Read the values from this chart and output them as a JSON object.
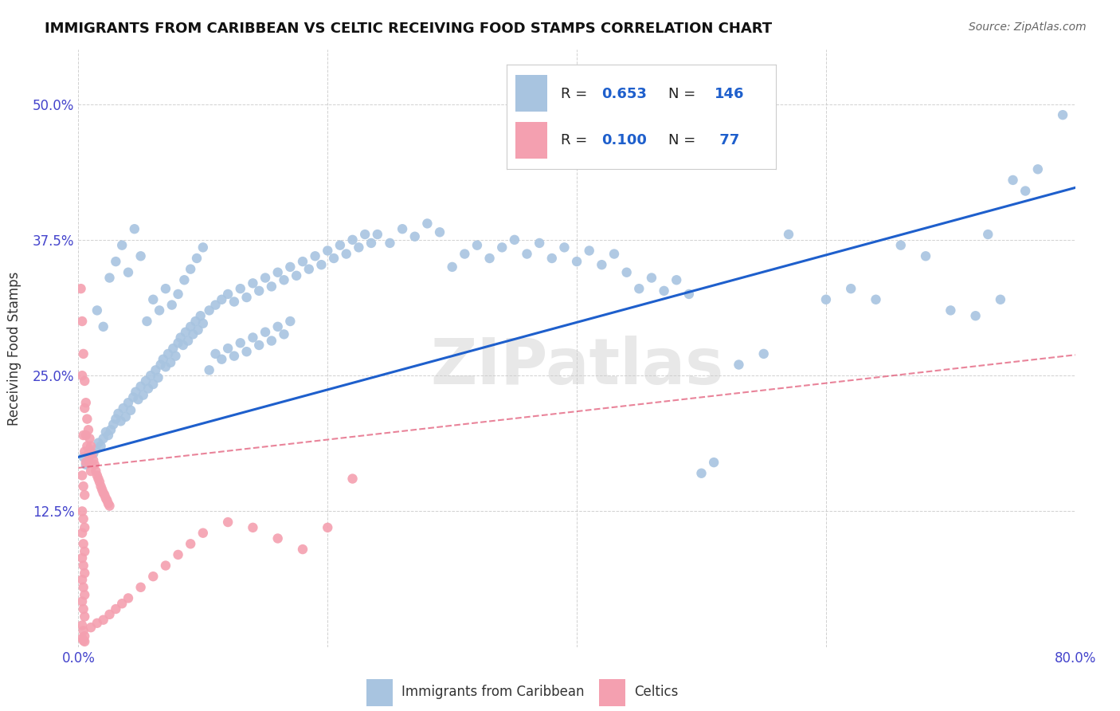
{
  "title": "IMMIGRANTS FROM CARIBBEAN VS CELTIC RECEIVING FOOD STAMPS CORRELATION CHART",
  "source": "Source: ZipAtlas.com",
  "ylabel": "Receiving Food Stamps",
  "xlim": [
    0.0,
    0.8
  ],
  "ylim": [
    0.0,
    0.55
  ],
  "xtick_vals": [
    0.0,
    0.2,
    0.4,
    0.6,
    0.8
  ],
  "xticklabels": [
    "0.0%",
    "",
    "",
    "",
    "80.0%"
  ],
  "ytick_vals": [
    0.0,
    0.125,
    0.25,
    0.375,
    0.5
  ],
  "yticklabels": [
    "",
    "12.5%",
    "25.0%",
    "37.5%",
    "50.0%"
  ],
  "caribbean_color": "#a8c4e0",
  "celtic_color": "#f4a0b0",
  "line1_color": "#1e5fcc",
  "line2_color": "#e05070",
  "watermark": "ZIPatlas",
  "title_fontsize": 13,
  "axis_tick_color": "#4444cc",
  "grid_color": "#cccccc",
  "background_color": "#ffffff",
  "caribbean_points": [
    [
      0.004,
      0.175
    ],
    [
      0.006,
      0.168
    ],
    [
      0.008,
      0.172
    ],
    [
      0.01,
      0.18
    ],
    [
      0.012,
      0.178
    ],
    [
      0.014,
      0.182
    ],
    [
      0.016,
      0.188
    ],
    [
      0.018,
      0.185
    ],
    [
      0.02,
      0.192
    ],
    [
      0.022,
      0.198
    ],
    [
      0.024,
      0.195
    ],
    [
      0.026,
      0.2
    ],
    [
      0.028,
      0.205
    ],
    [
      0.03,
      0.21
    ],
    [
      0.032,
      0.215
    ],
    [
      0.034,
      0.208
    ],
    [
      0.036,
      0.22
    ],
    [
      0.038,
      0.212
    ],
    [
      0.04,
      0.225
    ],
    [
      0.042,
      0.218
    ],
    [
      0.044,
      0.23
    ],
    [
      0.046,
      0.235
    ],
    [
      0.048,
      0.228
    ],
    [
      0.05,
      0.24
    ],
    [
      0.052,
      0.232
    ],
    [
      0.054,
      0.245
    ],
    [
      0.056,
      0.238
    ],
    [
      0.058,
      0.25
    ],
    [
      0.06,
      0.242
    ],
    [
      0.062,
      0.255
    ],
    [
      0.064,
      0.248
    ],
    [
      0.066,
      0.26
    ],
    [
      0.068,
      0.265
    ],
    [
      0.07,
      0.258
    ],
    [
      0.072,
      0.27
    ],
    [
      0.074,
      0.262
    ],
    [
      0.076,
      0.275
    ],
    [
      0.078,
      0.268
    ],
    [
      0.08,
      0.28
    ],
    [
      0.082,
      0.285
    ],
    [
      0.084,
      0.278
    ],
    [
      0.086,
      0.29
    ],
    [
      0.088,
      0.282
    ],
    [
      0.09,
      0.295
    ],
    [
      0.092,
      0.288
    ],
    [
      0.094,
      0.3
    ],
    [
      0.096,
      0.292
    ],
    [
      0.098,
      0.305
    ],
    [
      0.1,
      0.298
    ],
    [
      0.105,
      0.31
    ],
    [
      0.11,
      0.315
    ],
    [
      0.115,
      0.32
    ],
    [
      0.12,
      0.325
    ],
    [
      0.125,
      0.318
    ],
    [
      0.13,
      0.33
    ],
    [
      0.135,
      0.322
    ],
    [
      0.14,
      0.335
    ],
    [
      0.145,
      0.328
    ],
    [
      0.15,
      0.34
    ],
    [
      0.155,
      0.332
    ],
    [
      0.16,
      0.345
    ],
    [
      0.165,
      0.338
    ],
    [
      0.17,
      0.35
    ],
    [
      0.175,
      0.342
    ],
    [
      0.18,
      0.355
    ],
    [
      0.185,
      0.348
    ],
    [
      0.19,
      0.36
    ],
    [
      0.195,
      0.352
    ],
    [
      0.2,
      0.365
    ],
    [
      0.205,
      0.358
    ],
    [
      0.21,
      0.37
    ],
    [
      0.215,
      0.362
    ],
    [
      0.22,
      0.375
    ],
    [
      0.225,
      0.368
    ],
    [
      0.23,
      0.38
    ],
    [
      0.235,
      0.372
    ],
    [
      0.015,
      0.31
    ],
    [
      0.02,
      0.295
    ],
    [
      0.025,
      0.34
    ],
    [
      0.03,
      0.355
    ],
    [
      0.035,
      0.37
    ],
    [
      0.04,
      0.345
    ],
    [
      0.045,
      0.385
    ],
    [
      0.05,
      0.36
    ],
    [
      0.055,
      0.3
    ],
    [
      0.06,
      0.32
    ],
    [
      0.065,
      0.31
    ],
    [
      0.07,
      0.33
    ],
    [
      0.075,
      0.315
    ],
    [
      0.08,
      0.325
    ],
    [
      0.085,
      0.338
    ],
    [
      0.09,
      0.348
    ],
    [
      0.095,
      0.358
    ],
    [
      0.1,
      0.368
    ],
    [
      0.105,
      0.255
    ],
    [
      0.11,
      0.27
    ],
    [
      0.115,
      0.265
    ],
    [
      0.12,
      0.275
    ],
    [
      0.125,
      0.268
    ],
    [
      0.13,
      0.28
    ],
    [
      0.135,
      0.272
    ],
    [
      0.14,
      0.285
    ],
    [
      0.145,
      0.278
    ],
    [
      0.15,
      0.29
    ],
    [
      0.155,
      0.282
    ],
    [
      0.16,
      0.295
    ],
    [
      0.165,
      0.288
    ],
    [
      0.17,
      0.3
    ],
    [
      0.24,
      0.38
    ],
    [
      0.25,
      0.372
    ],
    [
      0.26,
      0.385
    ],
    [
      0.27,
      0.378
    ],
    [
      0.28,
      0.39
    ],
    [
      0.29,
      0.382
    ],
    [
      0.3,
      0.35
    ],
    [
      0.31,
      0.362
    ],
    [
      0.32,
      0.37
    ],
    [
      0.33,
      0.358
    ],
    [
      0.34,
      0.368
    ],
    [
      0.35,
      0.375
    ],
    [
      0.36,
      0.362
    ],
    [
      0.37,
      0.372
    ],
    [
      0.38,
      0.358
    ],
    [
      0.39,
      0.368
    ],
    [
      0.4,
      0.355
    ],
    [
      0.41,
      0.365
    ],
    [
      0.42,
      0.352
    ],
    [
      0.43,
      0.362
    ],
    [
      0.44,
      0.345
    ],
    [
      0.45,
      0.33
    ],
    [
      0.46,
      0.34
    ],
    [
      0.47,
      0.328
    ],
    [
      0.48,
      0.338
    ],
    [
      0.49,
      0.325
    ],
    [
      0.5,
      0.16
    ],
    [
      0.51,
      0.17
    ],
    [
      0.53,
      0.26
    ],
    [
      0.55,
      0.27
    ],
    [
      0.57,
      0.38
    ],
    [
      0.6,
      0.32
    ],
    [
      0.62,
      0.33
    ],
    [
      0.64,
      0.32
    ],
    [
      0.66,
      0.37
    ],
    [
      0.68,
      0.36
    ],
    [
      0.7,
      0.31
    ],
    [
      0.72,
      0.305
    ],
    [
      0.73,
      0.38
    ],
    [
      0.74,
      0.32
    ],
    [
      0.75,
      0.43
    ],
    [
      0.76,
      0.42
    ],
    [
      0.77,
      0.44
    ],
    [
      0.79,
      0.49
    ]
  ],
  "celtic_points": [
    [
      0.002,
      0.33
    ],
    [
      0.003,
      0.3
    ],
    [
      0.004,
      0.27
    ],
    [
      0.005,
      0.245
    ],
    [
      0.006,
      0.225
    ],
    [
      0.007,
      0.21
    ],
    [
      0.008,
      0.2
    ],
    [
      0.009,
      0.192
    ],
    [
      0.01,
      0.185
    ],
    [
      0.011,
      0.178
    ],
    [
      0.012,
      0.172
    ],
    [
      0.013,
      0.168
    ],
    [
      0.014,
      0.162
    ],
    [
      0.015,
      0.158
    ],
    [
      0.016,
      0.155
    ],
    [
      0.017,
      0.152
    ],
    [
      0.018,
      0.148
    ],
    [
      0.019,
      0.145
    ],
    [
      0.02,
      0.142
    ],
    [
      0.021,
      0.14
    ],
    [
      0.022,
      0.137
    ],
    [
      0.023,
      0.135
    ],
    [
      0.024,
      0.132
    ],
    [
      0.025,
      0.13
    ],
    [
      0.003,
      0.25
    ],
    [
      0.005,
      0.22
    ],
    [
      0.006,
      0.195
    ],
    [
      0.007,
      0.185
    ],
    [
      0.008,
      0.178
    ],
    [
      0.009,
      0.17
    ],
    [
      0.01,
      0.162
    ],
    [
      0.004,
      0.195
    ],
    [
      0.005,
      0.18
    ],
    [
      0.006,
      0.17
    ],
    [
      0.003,
      0.158
    ],
    [
      0.004,
      0.148
    ],
    [
      0.005,
      0.14
    ],
    [
      0.003,
      0.125
    ],
    [
      0.004,
      0.118
    ],
    [
      0.005,
      0.11
    ],
    [
      0.003,
      0.105
    ],
    [
      0.004,
      0.095
    ],
    [
      0.005,
      0.088
    ],
    [
      0.003,
      0.082
    ],
    [
      0.004,
      0.075
    ],
    [
      0.005,
      0.068
    ],
    [
      0.003,
      0.062
    ],
    [
      0.004,
      0.055
    ],
    [
      0.005,
      0.048
    ],
    [
      0.003,
      0.042
    ],
    [
      0.004,
      0.035
    ],
    [
      0.005,
      0.028
    ],
    [
      0.003,
      0.02
    ],
    [
      0.004,
      0.015
    ],
    [
      0.005,
      0.01
    ],
    [
      0.003,
      0.008
    ],
    [
      0.004,
      0.006
    ],
    [
      0.005,
      0.005
    ],
    [
      0.01,
      0.018
    ],
    [
      0.015,
      0.022
    ],
    [
      0.02,
      0.025
    ],
    [
      0.025,
      0.03
    ],
    [
      0.03,
      0.035
    ],
    [
      0.035,
      0.04
    ],
    [
      0.04,
      0.045
    ],
    [
      0.05,
      0.055
    ],
    [
      0.06,
      0.065
    ],
    [
      0.07,
      0.075
    ],
    [
      0.08,
      0.085
    ],
    [
      0.09,
      0.095
    ],
    [
      0.1,
      0.105
    ],
    [
      0.12,
      0.115
    ],
    [
      0.14,
      0.11
    ],
    [
      0.16,
      0.1
    ],
    [
      0.18,
      0.09
    ],
    [
      0.2,
      0.11
    ],
    [
      0.22,
      0.155
    ]
  ]
}
